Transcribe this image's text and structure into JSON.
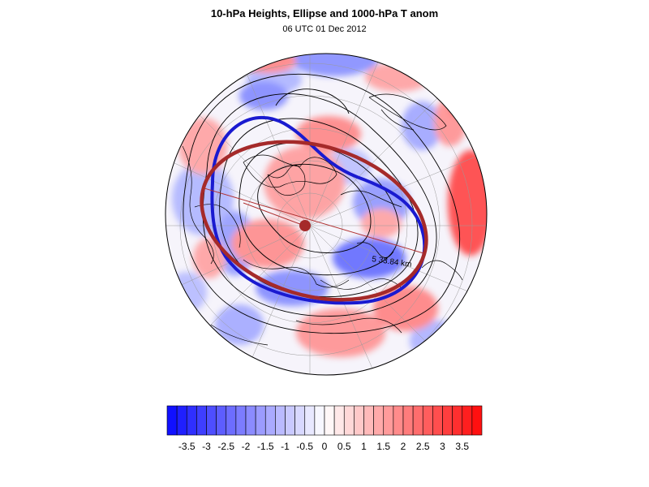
{
  "header": {
    "title": "10-hPa Heights, Ellipse and 1000-hPa T anom",
    "subtitle": "06 UTC 01 Dec 2012"
  },
  "map": {
    "projection": "polar stereographic",
    "ellipse_label": "5 33.84 km",
    "colors": {
      "negative": "#1010ff",
      "positive": "#ff1010",
      "ellipse": "#a52a2a",
      "vortex_edge": "#1a1ad0",
      "contour": "#000000"
    }
  },
  "colorbar": {
    "labels": [
      "-3.5",
      "-3",
      "-2.5",
      "-2",
      "-1.5",
      "-1",
      "-0.5",
      "0",
      "0.5",
      "1",
      "1.5",
      "2",
      "2.5",
      "3",
      "3.5"
    ],
    "min": -4,
    "max": 4,
    "step": 0.25
  }
}
